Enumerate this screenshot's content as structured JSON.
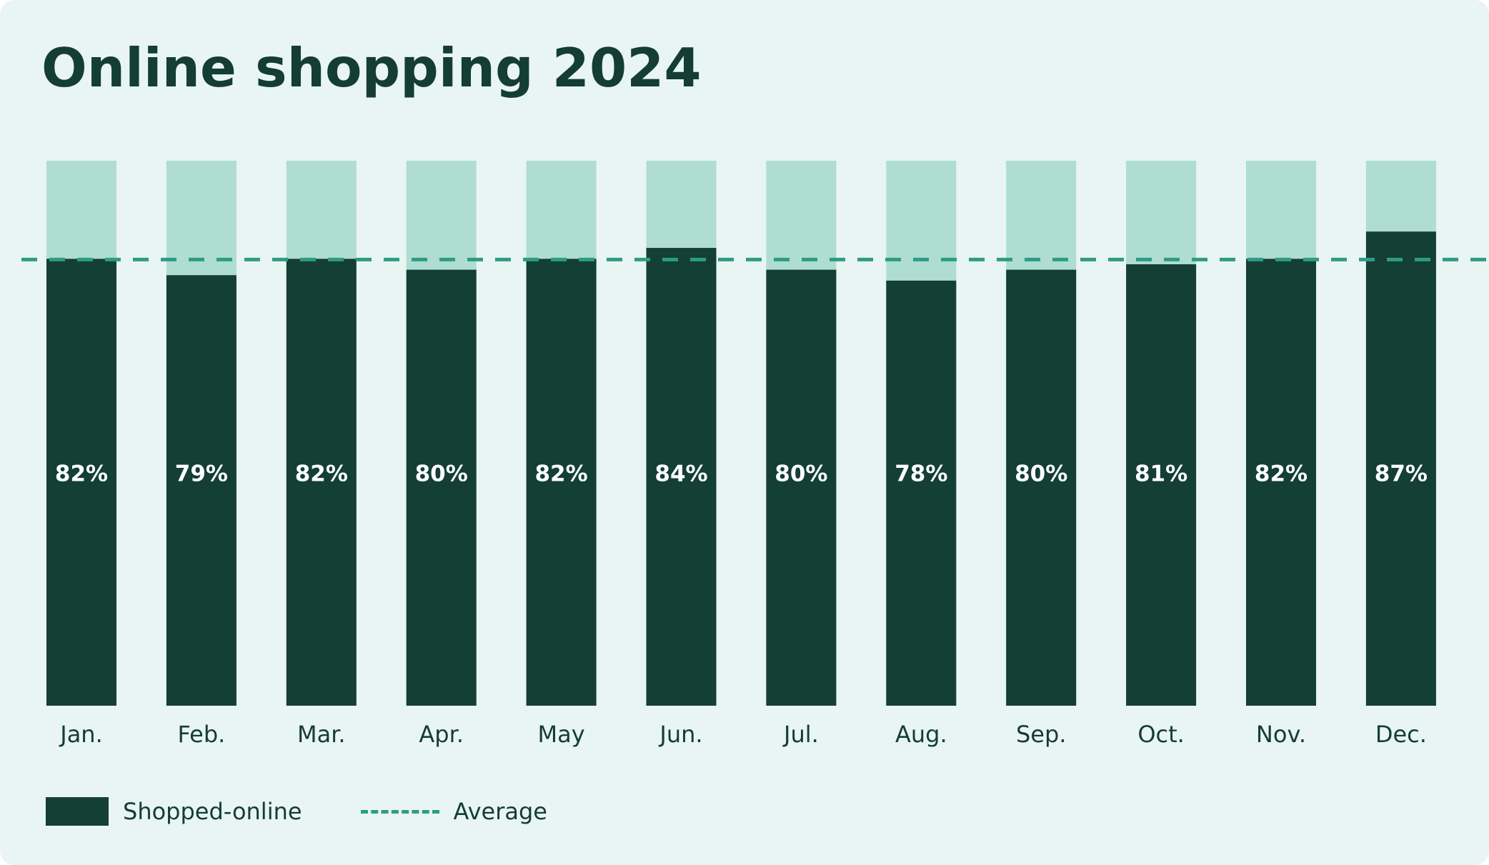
{
  "colors": {
    "background": "#e8f5f2",
    "bar_fill": "#133f34",
    "bar_remainder": "#afddd2",
    "average_line": "#2e9c82",
    "text_dark": "#143d33",
    "label_on_bar": "#ffffff"
  },
  "chart_data": {
    "type": "bar",
    "title": "Online shopping 2024",
    "categories": [
      "Jan.",
      "Feb.",
      "Mar.",
      "Apr.",
      "May",
      "Jun.",
      "Jul.",
      "Aug.",
      "Sep.",
      "Oct.",
      "Nov.",
      "Dec."
    ],
    "series": [
      {
        "name": "Shopped-online",
        "values": [
          82,
          79,
          82,
          80,
          82,
          84,
          80,
          78,
          80,
          81,
          82,
          87
        ],
        "data_labels": [
          "82%",
          "79%",
          "82%",
          "80%",
          "82%",
          "84%",
          "80%",
          "78%",
          "80%",
          "81%",
          "82%",
          "87%"
        ]
      }
    ],
    "reference_lines": [
      {
        "name": "Average",
        "value": 82,
        "style": "dashed"
      }
    ],
    "ylim": [
      0,
      100
    ],
    "stacked_remainder": true,
    "grid": false,
    "legend": {
      "placement": "bottom-left",
      "entries": [
        "Shopped-online",
        "Average"
      ]
    },
    "xlabel": "",
    "ylabel": ""
  }
}
